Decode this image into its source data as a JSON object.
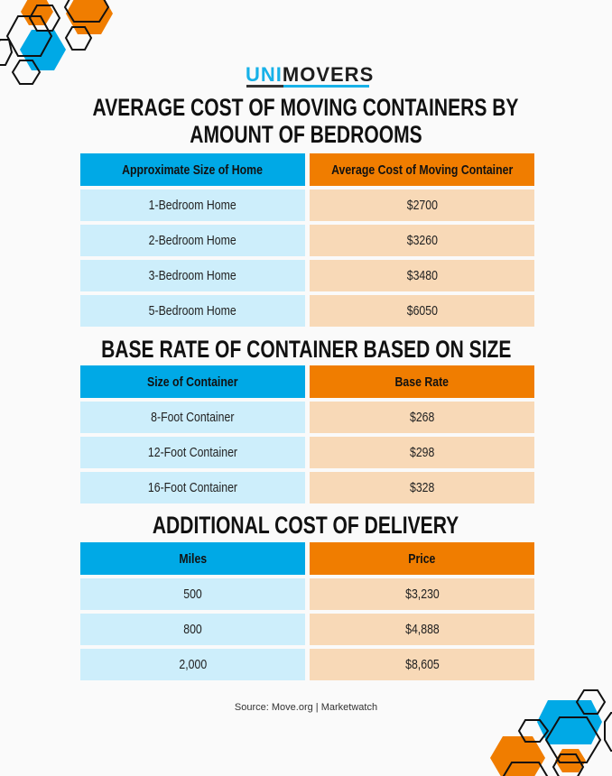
{
  "brand": {
    "logo_part1": "UNI",
    "logo_part2": "MOVERS",
    "colors": {
      "blue": "#00a9e6",
      "orange": "#f07d00",
      "light_blue": "#cdeefb",
      "peach": "#f8d9b7"
    }
  },
  "sections": [
    {
      "title_line1": "AVERAGE COST OF MOVING CONTAINERS BY",
      "title_line2": "AMOUNT OF BEDROOMS",
      "headers": [
        "Approximate Size of Home",
        "Average Cost of Moving Container"
      ],
      "rows": [
        [
          "1-Bedroom Home",
          "$2700"
        ],
        [
          "2-Bedroom Home",
          "$3260"
        ],
        [
          "3-Bedroom Home",
          "$3480"
        ],
        [
          "5-Bedroom Home",
          "$6050"
        ]
      ]
    },
    {
      "title_line1": "BASE RATE OF CONTAINER BASED ON SIZE",
      "headers": [
        "Size of Container",
        "Base Rate"
      ],
      "rows": [
        [
          "8-Foot Container",
          "$268"
        ],
        [
          "12-Foot Container",
          "$298"
        ],
        [
          "16-Foot Container",
          "$328"
        ]
      ]
    },
    {
      "title_line1": "ADDITIONAL COST OF DELIVERY",
      "headers": [
        "Miles",
        "Price"
      ],
      "rows": [
        [
          "500",
          "$3,230"
        ],
        [
          "800",
          "$4,888"
        ],
        [
          "2,000",
          "$8,605"
        ]
      ]
    }
  ],
  "source": "Source: Move.org | Marketwatch"
}
